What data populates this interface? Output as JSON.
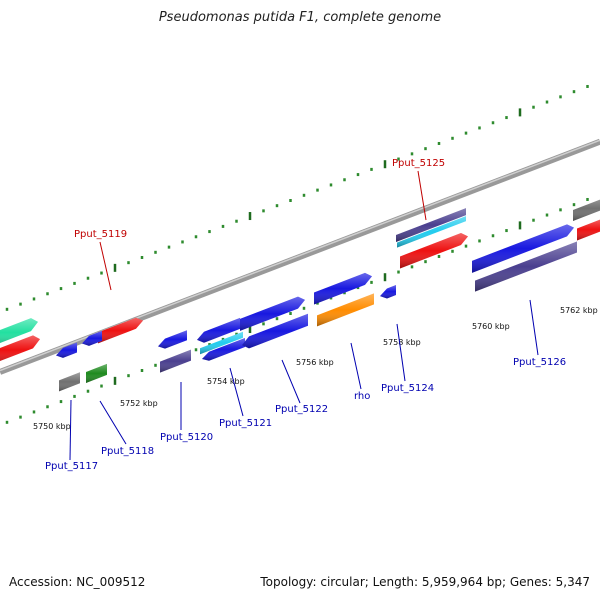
{
  "title": "Pseudomonas putida F1, complete genome",
  "footer": {
    "accession": "Accession: NC_009512",
    "topology": "Topology: circular; Length: 5,959,964 bp; Genes: 5,347"
  },
  "colors": {
    "backbone": "#8a8a8a",
    "tick_major": "#1f6b1f",
    "tick_minor": "#2e8b2e",
    "label_forward": "#c00000",
    "label_reverse": "#0000b0",
    "red": "#ee1111",
    "blue": "#1818e0",
    "navy": "#4a3f8f",
    "cyan": "#22ccee",
    "orange": "#ff8c00",
    "gray": "#707070",
    "green": "#1e8a1e",
    "teal": "#22e0a0"
  },
  "scale_labels": [
    "5750 kbp",
    "5752 kbp",
    "5754 kbp",
    "5756 kbp",
    "5758 kbp",
    "5760 kbp",
    "5762 kbp"
  ],
  "gene_labels": {
    "forward": [
      "Pput_5119",
      "Pput_5125"
    ],
    "reverse": [
      "Pput_5117",
      "Pput_5118",
      "Pput_5120",
      "Pput_5121",
      "Pput_5122",
      "rho",
      "Pput_5124",
      "Pput_5126"
    ]
  }
}
